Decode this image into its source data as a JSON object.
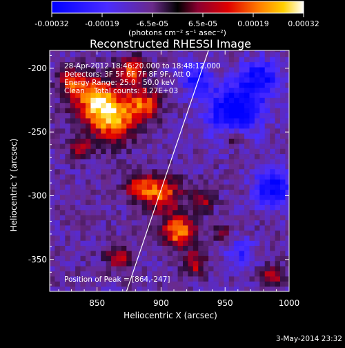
{
  "chart_data": {
    "type": "heatmap",
    "title": "Reconstructed RHESSI Image",
    "colorbar": {
      "ticks": [
        "-0.00032",
        "-0.00019",
        "-6.5e-05",
        "6.5e-05",
        "0.00019",
        "0.00032"
      ],
      "range": [
        -0.00032,
        0.00032
      ],
      "unit_label": "(photons cm⁻² s⁻¹ asec⁻²)"
    },
    "xlabel": "Heliocentric X (arcsec)",
    "ylabel": "Heliocentric Y (arcsec)",
    "xlim": [
      813,
      1000
    ],
    "ylim": [
      -375,
      -186
    ],
    "xticks": [
      850,
      900,
      950,
      1000
    ],
    "yticks": [
      -200,
      -250,
      -300,
      -350
    ],
    "limb_line": [
      [
        873,
        -375
      ],
      [
        937,
        -186
      ]
    ],
    "peak_position": [
      864,
      -247
    ],
    "annotations": [
      "28-Apr-2012 18:46:20.000 to 18:48:12.000",
      "Detectors: 3F 5F 6F 7F 8F 9F, Att 0",
      "Energy Range: 25.0 - 50.0 keV",
      "Clean    Total counts: 3.27E+03",
      "Position of Peak = [864,-247]"
    ],
    "timestamp": "3-May-2014 23:32"
  }
}
